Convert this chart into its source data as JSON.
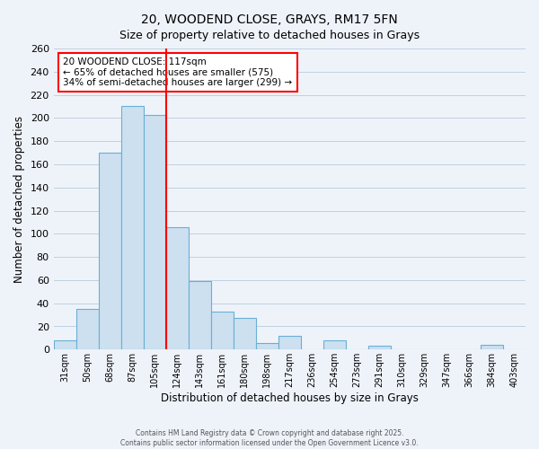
{
  "title": "20, WOODEND CLOSE, GRAYS, RM17 5FN",
  "subtitle": "Size of property relative to detached houses in Grays",
  "xlabel": "Distribution of detached houses by size in Grays",
  "ylabel": "Number of detached properties",
  "categories": [
    "31sqm",
    "50sqm",
    "68sqm",
    "87sqm",
    "105sqm",
    "124sqm",
    "143sqm",
    "161sqm",
    "180sqm",
    "198sqm",
    "217sqm",
    "236sqm",
    "254sqm",
    "273sqm",
    "291sqm",
    "310sqm",
    "329sqm",
    "347sqm",
    "366sqm",
    "384sqm",
    "403sqm"
  ],
  "values": [
    8,
    35,
    170,
    210,
    203,
    106,
    59,
    33,
    27,
    6,
    12,
    0,
    8,
    0,
    3,
    0,
    0,
    0,
    0,
    4,
    0
  ],
  "bar_color": "#cce0f0",
  "bar_edge_color": "#6aafd6",
  "ylim": [
    0,
    260
  ],
  "yticks": [
    0,
    20,
    40,
    60,
    80,
    100,
    120,
    140,
    160,
    180,
    200,
    220,
    240,
    260
  ],
  "annotation_title": "20 WOODEND CLOSE: 117sqm",
  "annotation_line1": "← 65% of detached houses are smaller (575)",
  "annotation_line2": "34% of semi-detached houses are larger (299) →",
  "footer1": "Contains HM Land Registry data © Crown copyright and database right 2025.",
  "footer2": "Contains public sector information licensed under the Open Government Licence v3.0.",
  "bg_color": "#eef3fa",
  "grid_color": "#c0d0e0",
  "red_line_index": 5
}
